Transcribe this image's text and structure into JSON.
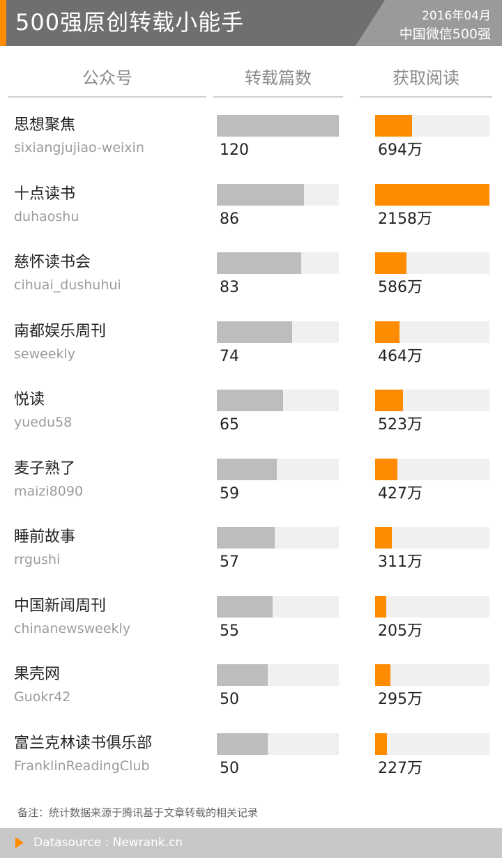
{
  "header": {
    "title": "500强原创转载小能手",
    "date": "2016年04月",
    "subtitle": "中国微信500强",
    "accent_color": "#ff8c00"
  },
  "columns": {
    "account": "公众号",
    "reposts": "转载篇数",
    "reads": "获取阅读"
  },
  "chart_data": {
    "type": "bar",
    "title": "500强原创转载小能手",
    "categories": [
      "思想聚焦",
      "十点读书",
      "慈怀读书会",
      "南都娱乐周刊",
      "悦读",
      "麦子熟了",
      "睡前故事",
      "中国新闻周刊",
      "果壳网",
      "富兰克林读书俱乐部"
    ],
    "account_ids": [
      "sixiangjujiao-weixin",
      "duhaoshu",
      "cihuai_dushuhui",
      "seweekly",
      "yuedu58",
      "maizi8090",
      "rrgushi",
      "chinanewsweekly",
      "Guokr42",
      "FranklinReadingClub"
    ],
    "series": [
      {
        "name": "转载篇数",
        "color": "#bdbdbd",
        "max": 120,
        "values": [
          120,
          86,
          83,
          74,
          65,
          59,
          57,
          55,
          50,
          50
        ],
        "labels": [
          "120",
          "86",
          "83",
          "74",
          "65",
          "59",
          "57",
          "55",
          "50",
          "50"
        ]
      },
      {
        "name": "获取阅读",
        "color": "#ff8c00",
        "max": 2158,
        "values": [
          694,
          2158,
          586,
          464,
          523,
          427,
          311,
          205,
          295,
          227
        ],
        "labels": [
          "694万",
          "2158万",
          "586万",
          "464万",
          "523万",
          "427万",
          "311万",
          "205万",
          "295万",
          "227万"
        ]
      }
    ]
  },
  "note": "备注：统计数据来源于腾讯基于文章转载的相关记录",
  "footer": {
    "source": "Datasource : Newrank.cn"
  }
}
